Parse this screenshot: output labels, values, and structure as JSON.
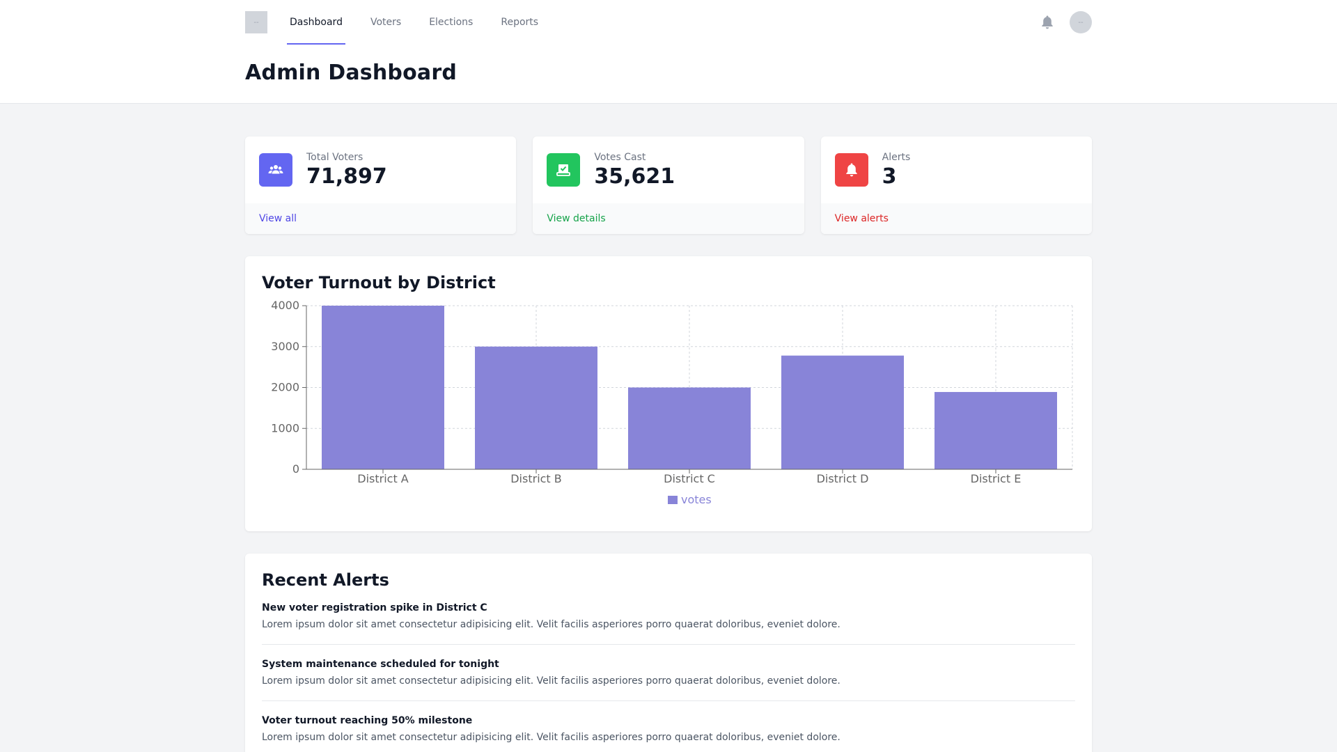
{
  "nav": {
    "logo_text": "--",
    "links": [
      {
        "label": "Dashboard"
      },
      {
        "label": "Voters"
      },
      {
        "label": "Elections"
      },
      {
        "label": "Reports"
      }
    ],
    "avatar_text": "--"
  },
  "page_title": "Admin Dashboard",
  "stats": [
    {
      "label": "Total Voters",
      "value": "71,897",
      "link": "View all",
      "color": "#6366f1",
      "icon": "users-icon"
    },
    {
      "label": "Votes Cast",
      "value": "35,621",
      "link": "View details",
      "color": "#22c55e",
      "icon": "ballot-box-icon"
    },
    {
      "label": "Alerts",
      "value": "3",
      "link": "View alerts",
      "color": "#ef4444",
      "icon": "bell-icon"
    }
  ],
  "chart_panel": {
    "title": "Voter Turnout by District"
  },
  "chart_data": {
    "type": "bar",
    "title": "Voter Turnout by District",
    "categories": [
      "District A",
      "District B",
      "District C",
      "District D",
      "District E"
    ],
    "series": [
      {
        "name": "votes",
        "values": [
          4000,
          3000,
          2000,
          2780,
          1890
        ],
        "color": "#8884d8"
      }
    ],
    "ylim": [
      0,
      4000
    ],
    "yticks": [
      0,
      1000,
      2000,
      3000,
      4000
    ],
    "grid": true,
    "legend": "bottom-center"
  },
  "alerts_panel": {
    "title": "Recent Alerts",
    "items": [
      {
        "title": "New voter registration spike in District C",
        "body": "Lorem ipsum dolor sit amet consectetur adipisicing elit. Velit facilis asperiores porro quaerat doloribus, eveniet dolore."
      },
      {
        "title": "System maintenance scheduled for tonight",
        "body": "Lorem ipsum dolor sit amet consectetur adipisicing elit. Velit facilis asperiores porro quaerat doloribus, eveniet dolore."
      },
      {
        "title": "Voter turnout reaching 50% milestone",
        "body": "Lorem ipsum dolor sit amet consectetur adipisicing elit. Velit facilis asperiores porro quaerat doloribus, eveniet dolore."
      }
    ]
  }
}
